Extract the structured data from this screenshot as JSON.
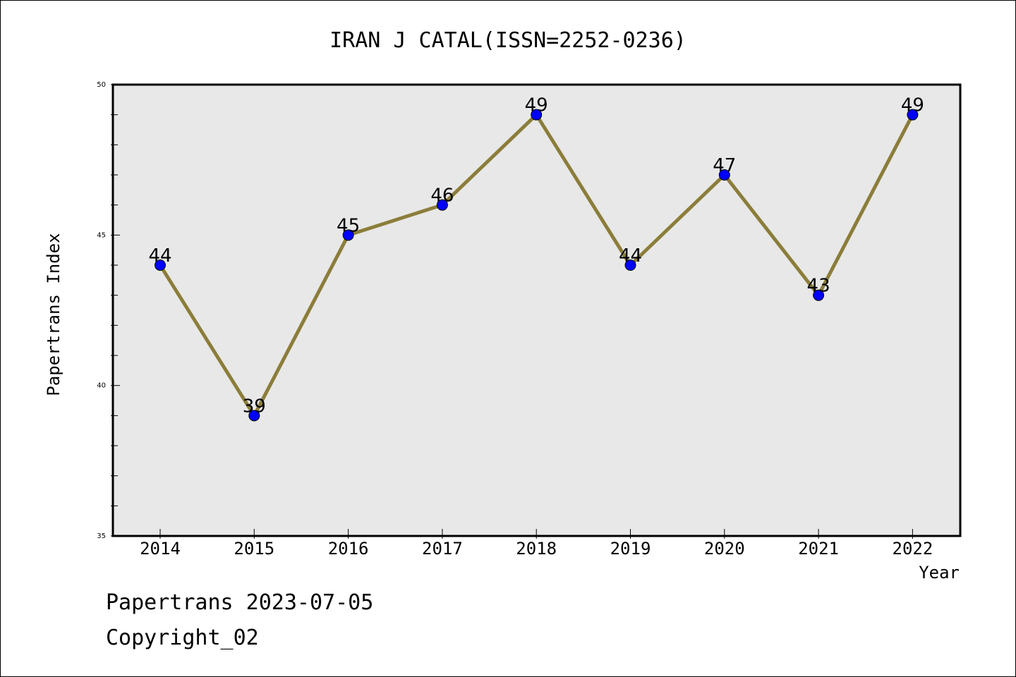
{
  "chart_data": {
    "type": "line",
    "title": "IRAN J CATAL(ISSN=2252-0236)",
    "xlabel": "Year",
    "ylabel": "Papertrans Index",
    "x": [
      "2014",
      "2015",
      "2016",
      "2017",
      "2018",
      "2019",
      "2020",
      "2021",
      "2022"
    ],
    "values": [
      44,
      39,
      45,
      46,
      49,
      44,
      47,
      43,
      49
    ],
    "data_labels": [
      "44",
      "39",
      "45",
      "46",
      "49",
      "44",
      "47",
      "43",
      "49"
    ],
    "ylim": [
      35,
      50
    ],
    "yticks": [
      "35",
      "40",
      "45",
      "50"
    ],
    "grid": false,
    "legend": "none",
    "colors": {
      "line": "#8b7d3a",
      "marker": "#0000ff",
      "plot_background": "#e8e8e8"
    }
  },
  "footer": {
    "line1": "Papertrans 2023-07-05",
    "line2": "Copyright_02"
  }
}
